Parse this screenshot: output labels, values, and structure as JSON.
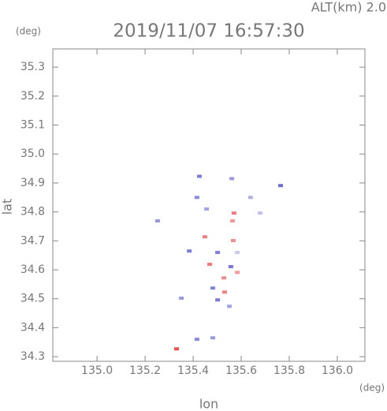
{
  "chart_data": {
    "type": "scatter",
    "title": "2019/11/07 16:57:30",
    "subtitle": "ALT(km)  2.0",
    "x_label": "lon",
    "y_label": "lat",
    "y_unit": "(deg)",
    "x_unit": "(deg)",
    "x": [
      135.426,
      135.561,
      135.764,
      135.416,
      135.456,
      135.57,
      135.639,
      135.679,
      135.564,
      135.252,
      135.449,
      135.567,
      135.384,
      135.502,
      135.584,
      135.469,
      135.557,
      135.528,
      135.584,
      135.482,
      135.531,
      135.502,
      135.551,
      135.351,
      135.416,
      135.482,
      135.331
    ],
    "values": [
      34.923,
      34.915,
      34.891,
      34.85,
      34.81,
      34.796,
      34.85,
      34.796,
      34.769,
      34.769,
      34.714,
      34.701,
      34.665,
      34.66,
      34.66,
      34.619,
      34.611,
      34.572,
      34.591,
      34.537,
      34.523,
      34.496,
      34.474,
      34.502,
      34.36,
      34.365,
      34.327
    ],
    "colors": [
      "#7b7bdc",
      "#9a9ae0",
      "#6c6cd8",
      "#8d8de0",
      "#a3a3e6",
      "#f07a7a",
      "#b0b0e6",
      "#c0c0ea",
      "#f29a9a",
      "#9a9ae0",
      "#f08080",
      "#f48c8c",
      "#7b7bdc",
      "#8080e0",
      "#c8c8ee",
      "#f07a7a",
      "#7676d8",
      "#f28a8a",
      "#f29a9a",
      "#8484de",
      "#f08080",
      "#7b7bdc",
      "#a0a0e4",
      "#9a9ae0",
      "#8a8adc",
      "#9a9ae0",
      "#f05050"
    ],
    "xlim": [
      134.816,
      136.115
    ],
    "ylim": [
      34.284,
      35.363
    ],
    "xticks": [
      {
        "value": 135.0,
        "label": "135.0"
      },
      135.2,
      135.4,
      135.6,
      135.8,
      {
        "value": 136.0,
        "label": "136.0"
      }
    ],
    "yticks": [
      34.3,
      34.4,
      34.5,
      34.6,
      34.7,
      34.8,
      34.9,
      {
        "value": 35.0,
        "label": "35.0"
      },
      35.1,
      35.2,
      35.3
    ]
  }
}
